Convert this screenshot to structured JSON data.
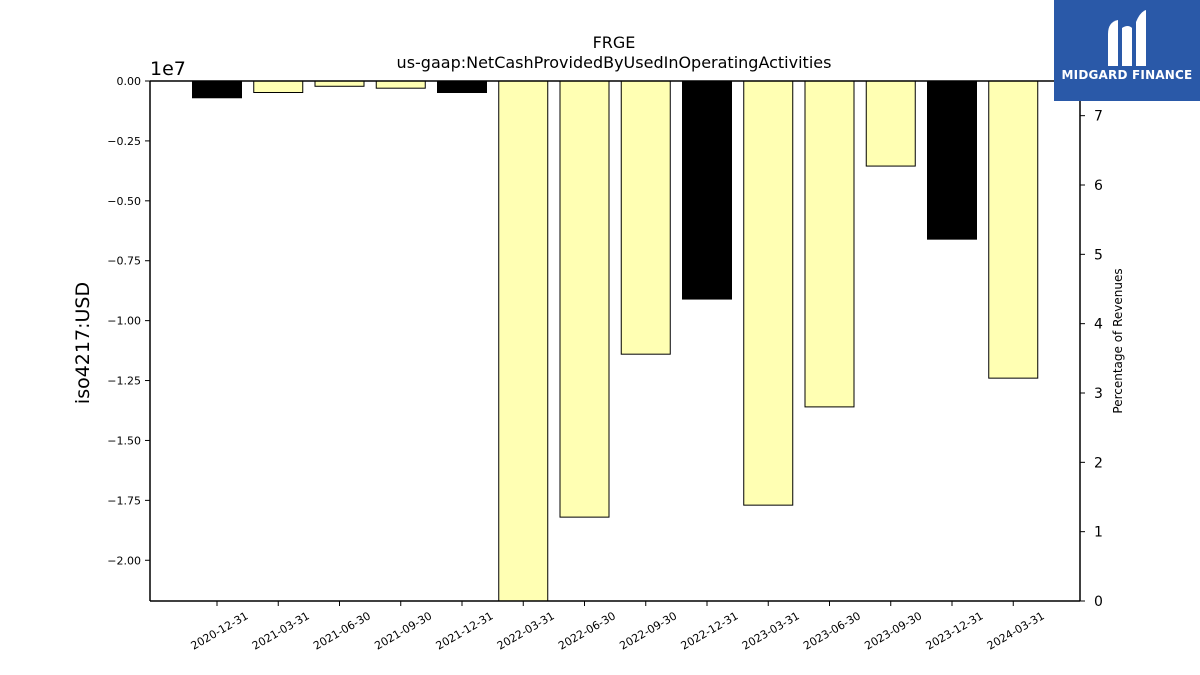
{
  "chart_data": {
    "type": "bar",
    "title": "FRGE",
    "subtitle": "us-gaap:NetCashProvidedByUsedInOperatingActivities",
    "ylabel": "iso4217:USD",
    "y_offset_label": "1e7",
    "y2label": "Percentage of Revenues",
    "categories": [
      "2020-12-31",
      "2021-03-31",
      "2021-06-30",
      "2021-09-30",
      "2021-12-31",
      "2022-03-31",
      "2022-06-30",
      "2022-09-30",
      "2022-12-31",
      "2023-03-31",
      "2023-06-30",
      "2023-09-30",
      "2023-12-31",
      "2024-03-31"
    ],
    "values": [
      -700000,
      -480000,
      -220000,
      -300000,
      -480000,
      -21700000,
      -18200000,
      -11400000,
      -9100000,
      -17700000,
      -13600000,
      -3550000,
      -6600000,
      -12400000
    ],
    "bar_colors": [
      "#000000",
      "#ffffb3",
      "#ffffb3",
      "#ffffb3",
      "#000000",
      "#ffffb3",
      "#ffffb3",
      "#ffffb3",
      "#000000",
      "#ffffb3",
      "#ffffb3",
      "#ffffb3",
      "#000000",
      "#ffffb3"
    ],
    "ylim": [
      -21700000,
      0
    ],
    "yticks": [
      0,
      -2500000,
      -5000000,
      -7500000,
      -10000000,
      -12500000,
      -15000000,
      -17500000,
      -20000000
    ],
    "ytick_labels": [
      "0.00",
      "−0.25",
      "−0.50",
      "−0.75",
      "−1.00",
      "−1.25",
      "−1.50",
      "−1.75",
      "−2.00"
    ],
    "y2lim": [
      0,
      7.5
    ],
    "y2ticks": [
      0,
      1,
      2,
      3,
      4,
      5,
      6,
      7
    ],
    "grid": false
  },
  "logo": {
    "text": "MIDGARD FINANCE",
    "color": "#2a59a8"
  }
}
